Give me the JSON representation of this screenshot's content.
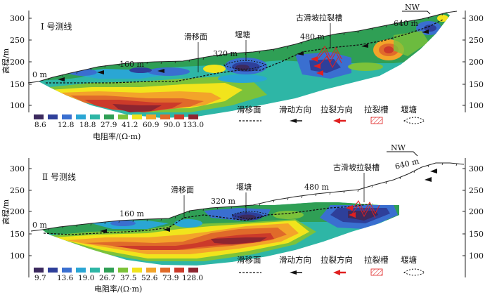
{
  "colors": {
    "palette": [
      "#3c2a5e",
      "#2e3f9a",
      "#3a6fd0",
      "#2aa6d4",
      "#2eb6a6",
      "#2f9f55",
      "#7cc23a",
      "#f1e41c",
      "#f3a42a",
      "#e06a2a",
      "#cc3a2a",
      "#8e2530"
    ],
    "terrain_line": "#222222",
    "flow_arrow": "#111111",
    "pull_arrow": "#e02020",
    "trough": "#e02020"
  },
  "profiles": [
    {
      "title": "Ⅰ 号测线",
      "y_axis_label": "高程/m",
      "y_ticks": [
        "100",
        "150",
        "200",
        "250",
        "300"
      ],
      "distance_labels": [
        "0 m",
        "160 m",
        "320 m",
        "480 m",
        "640 m"
      ],
      "annotations": {
        "slip_surface": "滑移面",
        "pond": "堰塘",
        "ancient_trough": "古滑坡拉裂槽"
      },
      "direction": "NW",
      "colorbar_values": [
        "8.6",
        "12.8",
        "18.8",
        "27.9",
        "41.2",
        "60.9",
        "90.0",
        "133.0"
      ],
      "colorbar_label": "电阻率/(Ω·m)",
      "legend": [
        "滑移面",
        "滑动方向",
        "拉裂方向",
        "拉裂槽",
        "堰塘"
      ]
    },
    {
      "title": "Ⅱ 号测线",
      "y_axis_label": "高程/m",
      "y_ticks": [
        "100",
        "150",
        "200",
        "250",
        "300"
      ],
      "distance_labels": [
        "0 m",
        "160 m",
        "320 m",
        "480 m",
        "640 m"
      ],
      "annotations": {
        "slip_surface": "滑移面",
        "pond": "堰塘",
        "ancient_trough": "古滑坡拉裂槽"
      },
      "direction": "NW",
      "colorbar_values": [
        "9.7",
        "13.6",
        "19.0",
        "26.7",
        "37.5",
        "52.6",
        "73.9",
        "128.0"
      ],
      "colorbar_label": "电阻率/(Ω·m)",
      "legend": [
        "滑移面",
        "滑动方向",
        "拉裂方向",
        "拉裂槽",
        "堰塘"
      ]
    }
  ]
}
